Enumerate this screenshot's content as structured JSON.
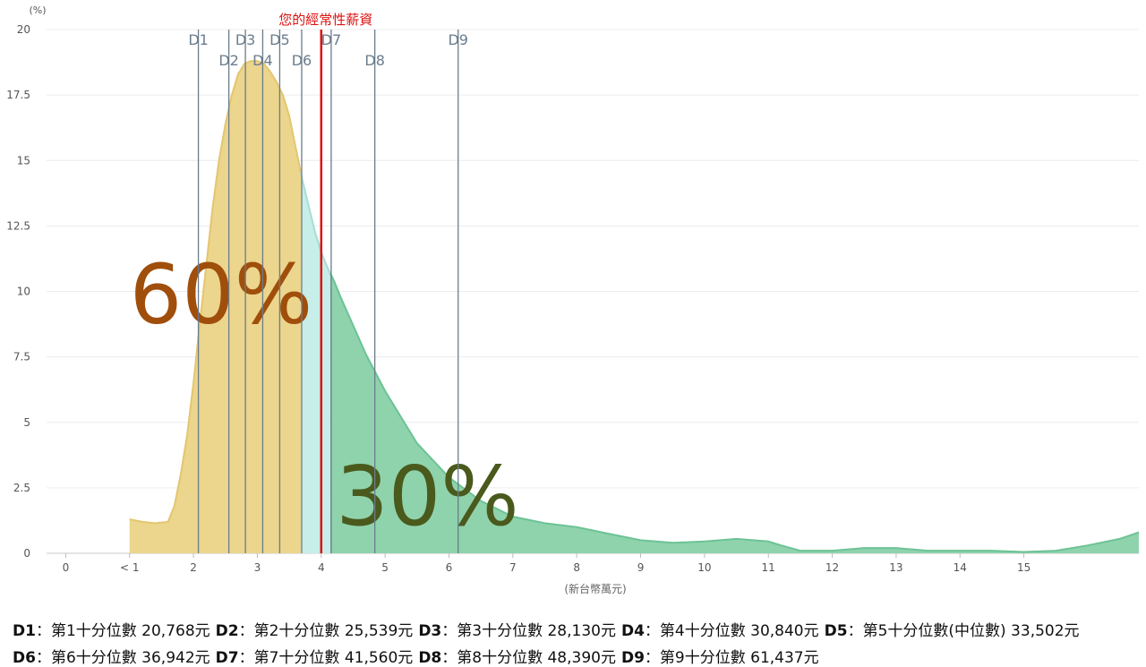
{
  "chart_data": {
    "type": "area",
    "y_unit": "(%)",
    "x_unit": "(新台幣萬元)",
    "ylim": [
      0,
      20
    ],
    "y_ticks": [
      "0",
      "2.5",
      "5",
      "7.5",
      "10",
      "12.5",
      "15",
      "17.5",
      "20"
    ],
    "y_tick_values": [
      0,
      2.5,
      5,
      7.5,
      10,
      12.5,
      15,
      17.5,
      20
    ],
    "x_ticks": [
      "0",
      "< 1",
      "2",
      "3",
      "4",
      "5",
      "6",
      "7",
      "8",
      "9",
      "10",
      "11",
      "12",
      "13",
      "14",
      "15"
    ],
    "x_tick_values": [
      0,
      1,
      2,
      3,
      4,
      5,
      6,
      7,
      8,
      9,
      10,
      11,
      12,
      13,
      14,
      15
    ],
    "xlim": [
      -0.3,
      16.8
    ],
    "grid": true,
    "curve": {
      "x": [
        1.0,
        1.2,
        1.4,
        1.6,
        1.7,
        1.8,
        1.9,
        2.0,
        2.1,
        2.2,
        2.3,
        2.4,
        2.5,
        2.6,
        2.7,
        2.8,
        2.9,
        3.0,
        3.1,
        3.2,
        3.3,
        3.4,
        3.5,
        3.6,
        3.7,
        3.8,
        3.9,
        4.0,
        4.1,
        4.2,
        4.3,
        4.5,
        4.7,
        5.0,
        5.3,
        5.5,
        6.0,
        6.5,
        7.0,
        7.5,
        8.0,
        8.5,
        9.0,
        9.5,
        10.0,
        10.5,
        11.0,
        11.2,
        11.5,
        12.0,
        12.5,
        13.0,
        13.5,
        14.0,
        14.5,
        15.0,
        15.5,
        16.0,
        16.5,
        16.8
      ],
      "y": [
        1.3,
        1.2,
        1.15,
        1.2,
        1.8,
        3.0,
        4.5,
        6.5,
        8.8,
        11.0,
        13.2,
        15.0,
        16.4,
        17.5,
        18.3,
        18.7,
        18.8,
        18.8,
        18.7,
        18.4,
        18.0,
        17.5,
        16.7,
        15.5,
        14.3,
        13.3,
        12.3,
        11.5,
        10.9,
        10.4,
        9.8,
        8.7,
        7.6,
        6.2,
        5.0,
        4.2,
        2.9,
        2.0,
        1.4,
        1.15,
        1.0,
        0.75,
        0.5,
        0.4,
        0.45,
        0.55,
        0.45,
        0.3,
        0.1,
        0.1,
        0.2,
        0.2,
        0.1,
        0.1,
        0.1,
        0.05,
        0.1,
        0.3,
        0.55,
        0.8
      ]
    },
    "regions": [
      {
        "from": 1.0,
        "to": 3.68,
        "color": "#ecd58c",
        "line": "#e3c670"
      },
      {
        "from": 3.68,
        "to": 4.14,
        "color": "#c7eee8",
        "line": "#a7ddd4"
      },
      {
        "from": 4.14,
        "to": 16.8,
        "color": "#8fd3ad",
        "line": "#6cc395"
      }
    ],
    "decile_color": "#6a7c8c",
    "deciles": [
      {
        "name": "D1",
        "x": 2.0768,
        "row": 1
      },
      {
        "name": "D2",
        "x": 2.5539,
        "row": 2
      },
      {
        "name": "D3",
        "x": 2.813,
        "row": 1
      },
      {
        "name": "D4",
        "x": 3.084,
        "row": 2
      },
      {
        "name": "D5",
        "x": 3.3502,
        "row": 1
      },
      {
        "name": "D6",
        "x": 3.6942,
        "row": 2
      },
      {
        "name": "D7",
        "x": 4.156,
        "row": 1
      },
      {
        "name": "D8",
        "x": 4.839,
        "row": 2
      },
      {
        "name": "D9",
        "x": 6.1437,
        "row": 1
      }
    ],
    "marker": {
      "label": "您的經常性薪資",
      "x": 4.0,
      "color": "#dd1111"
    },
    "annotations": [
      {
        "text": "60%",
        "x": 1.0,
        "y": 8.8,
        "color": "#a04e0b"
      },
      {
        "text": "30%",
        "x": 4.23,
        "y": 1.1,
        "color": "#4a5a1c"
      }
    ]
  },
  "legend": {
    "rows": [
      [
        {
          "key": "D1",
          "text": "：第1十分位數 20,768元"
        },
        {
          "key": "D2",
          "text": "：第2十分位數 25,539元"
        },
        {
          "key": "D3",
          "text": "：第3十分位數 28,130元"
        },
        {
          "key": "D4",
          "text": "：第4十分位數 30,840元"
        },
        {
          "key": "D5",
          "text": "：第5十分位數(中位數) 33,502元"
        }
      ],
      [
        {
          "key": "D6",
          "text": "：第6十分位數 36,942元"
        },
        {
          "key": "D7",
          "text": "：第7十分位數 41,560元"
        },
        {
          "key": "D8",
          "text": "：第8十分位數 48,390元"
        },
        {
          "key": "D9",
          "text": "：第9十分位數 61,437元"
        }
      ]
    ]
  }
}
